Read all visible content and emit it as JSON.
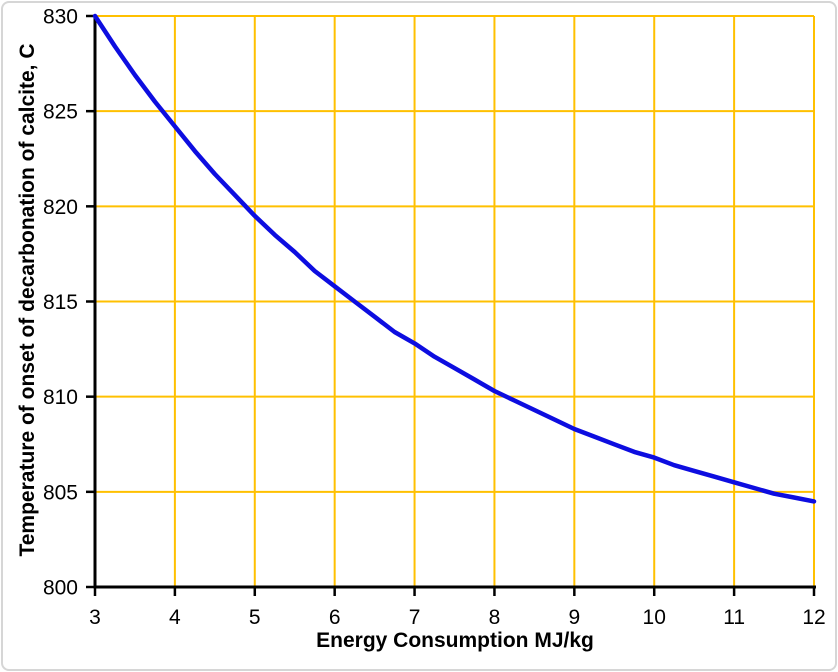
{
  "chart_data": {
    "type": "line",
    "title": "",
    "xlabel": "Energy Consumption MJ/kg",
    "ylabel": "Temperature of onset of decarbonation of calcite, C",
    "xlim": [
      3,
      12
    ],
    "ylim": [
      800,
      830
    ],
    "x_ticks": [
      3,
      4,
      5,
      6,
      7,
      8,
      9,
      10,
      11,
      12
    ],
    "y_ticks": [
      800,
      805,
      810,
      815,
      820,
      825,
      830
    ],
    "grid": true,
    "legend_position": "none",
    "series": [
      {
        "x": [
          3,
          3.25,
          3.5,
          3.75,
          4,
          4.25,
          4.5,
          4.75,
          5,
          5.25,
          5.5,
          5.75,
          6,
          6.25,
          6.5,
          6.75,
          7,
          7.25,
          7.5,
          7.75,
          8,
          8.25,
          8.5,
          8.75,
          9,
          9.25,
          9.5,
          9.75,
          10,
          10.25,
          10.5,
          10.75,
          11,
          11.25,
          11.5,
          11.75,
          12
        ],
        "y": [
          830.0,
          828.4,
          826.9,
          825.5,
          824.2,
          822.9,
          821.7,
          820.6,
          819.5,
          818.5,
          817.6,
          816.6,
          815.8,
          815.0,
          814.2,
          813.4,
          812.8,
          812.1,
          811.5,
          810.9,
          810.3,
          809.8,
          809.3,
          808.8,
          808.3,
          807.9,
          807.5,
          807.1,
          806.8,
          806.4,
          806.1,
          805.8,
          805.5,
          805.2,
          804.9,
          804.7,
          804.5
        ]
      }
    ],
    "colors": {
      "curve": "#0d0de0",
      "gridline": "#ffc000",
      "axis": "#000000",
      "text": "#000000",
      "background": "#ffffff",
      "frame_border": "#d6d6d6"
    }
  }
}
